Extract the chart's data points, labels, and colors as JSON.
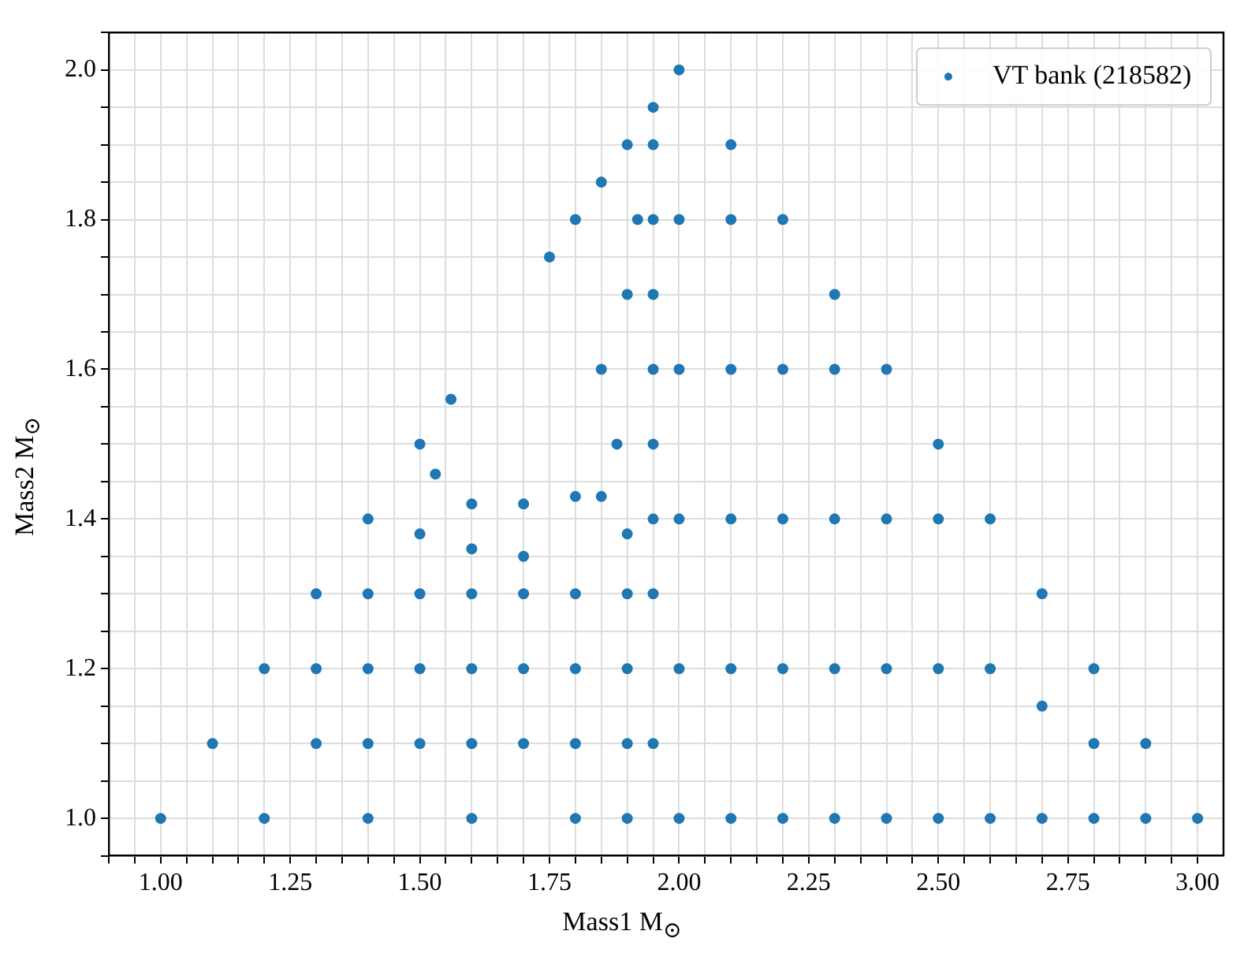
{
  "chart_data": {
    "type": "scatter",
    "xlabel": "Mass1 M$_{⊙}$",
    "ylabel": "Mass2 M$_{⊙}$",
    "xlim": [
      0.9,
      3.05
    ],
    "ylim": [
      0.95,
      2.05
    ],
    "xticks": [
      {
        "value": 0.9,
        "label": null
      },
      {
        "value": 0.95,
        "label": null
      },
      {
        "value": 1.0,
        "label": "1.00"
      },
      {
        "value": 1.05,
        "label": null
      },
      {
        "value": 1.1,
        "label": null
      },
      {
        "value": 1.15,
        "label": null
      },
      {
        "value": 1.2,
        "label": null
      },
      {
        "value": 1.25,
        "label": "1.25"
      },
      {
        "value": 1.3,
        "label": null
      },
      {
        "value": 1.35,
        "label": null
      },
      {
        "value": 1.4,
        "label": null
      },
      {
        "value": 1.45,
        "label": null
      },
      {
        "value": 1.5,
        "label": "1.50"
      },
      {
        "value": 1.55,
        "label": null
      },
      {
        "value": 1.6,
        "label": null
      },
      {
        "value": 1.65,
        "label": null
      },
      {
        "value": 1.7,
        "label": null
      },
      {
        "value": 1.75,
        "label": "1.75"
      },
      {
        "value": 1.8,
        "label": null
      },
      {
        "value": 1.85,
        "label": null
      },
      {
        "value": 1.9,
        "label": null
      },
      {
        "value": 1.95,
        "label": null
      },
      {
        "value": 2.0,
        "label": "2.00"
      },
      {
        "value": 2.05,
        "label": null
      },
      {
        "value": 2.1,
        "label": null
      },
      {
        "value": 2.15,
        "label": null
      },
      {
        "value": 2.2,
        "label": null
      },
      {
        "value": 2.25,
        "label": "2.25"
      },
      {
        "value": 2.3,
        "label": null
      },
      {
        "value": 2.35,
        "label": null
      },
      {
        "value": 2.4,
        "label": null
      },
      {
        "value": 2.45,
        "label": null
      },
      {
        "value": 2.5,
        "label": "2.50"
      },
      {
        "value": 2.55,
        "label": null
      },
      {
        "value": 2.6,
        "label": null
      },
      {
        "value": 2.65,
        "label": null
      },
      {
        "value": 2.7,
        "label": null
      },
      {
        "value": 2.75,
        "label": "2.75"
      },
      {
        "value": 2.8,
        "label": null
      },
      {
        "value": 2.85,
        "label": null
      },
      {
        "value": 2.9,
        "label": null
      },
      {
        "value": 2.95,
        "label": null
      },
      {
        "value": 3.0,
        "label": "3.00"
      }
    ],
    "yticks": [
      {
        "value": 0.95,
        "label": null
      },
      {
        "value": 1.0,
        "label": "1.0"
      },
      {
        "value": 1.05,
        "label": null
      },
      {
        "value": 1.1,
        "label": null
      },
      {
        "value": 1.15,
        "label": null
      },
      {
        "value": 1.2,
        "label": "1.2"
      },
      {
        "value": 1.25,
        "label": null
      },
      {
        "value": 1.3,
        "label": null
      },
      {
        "value": 1.35,
        "label": null
      },
      {
        "value": 1.4,
        "label": "1.4"
      },
      {
        "value": 1.45,
        "label": null
      },
      {
        "value": 1.5,
        "label": null
      },
      {
        "value": 1.55,
        "label": null
      },
      {
        "value": 1.6,
        "label": "1.6"
      },
      {
        "value": 1.65,
        "label": null
      },
      {
        "value": 1.7,
        "label": null
      },
      {
        "value": 1.75,
        "label": null
      },
      {
        "value": 1.8,
        "label": "1.8"
      },
      {
        "value": 1.85,
        "label": null
      },
      {
        "value": 1.9,
        "label": null
      },
      {
        "value": 1.95,
        "label": null
      },
      {
        "value": 2.0,
        "label": "2.0"
      },
      {
        "value": 2.05,
        "label": null
      }
    ],
    "grid": true,
    "legend": "top right",
    "marker": "circle",
    "series": [
      {
        "name": "VT bank (218582)",
        "color": "#1f77b4",
        "x": [
          2.0,
          2.0,
          2.0,
          2.0,
          2.0,
          2.0,
          2.1,
          2.1,
          2.1,
          2.1,
          2.1,
          2.1,
          2.2,
          2.2,
          2.2,
          2.2,
          2.2,
          2.3,
          2.3,
          2.3,
          2.3,
          2.3,
          2.4,
          2.4,
          2.4,
          2.4,
          2.5,
          2.5,
          2.5,
          2.5,
          2.6,
          2.6,
          2.6,
          2.7,
          2.7,
          2.7,
          2.8,
          2.8,
          2.8,
          2.9,
          2.9,
          3.0,
          1.0,
          1.1,
          1.2,
          1.3,
          1.4,
          1.5,
          1.2,
          1.4,
          1.6,
          1.8,
          1.9,
          1.3,
          1.3,
          1.4,
          1.4,
          1.4,
          1.5,
          1.5,
          1.5,
          1.5,
          1.6,
          1.6,
          1.6,
          1.6,
          1.7,
          1.7,
          1.7,
          1.7,
          1.8,
          1.8,
          1.8,
          1.9,
          1.9,
          1.9,
          1.9,
          1.95,
          1.95,
          1.95,
          1.95,
          1.95,
          1.95,
          1.95,
          1.95,
          1.6,
          1.7,
          1.8,
          1.85,
          1.75,
          1.8,
          1.85,
          1.9,
          1.95,
          1.88,
          1.9,
          1.85,
          1.92,
          1.56,
          1.53
        ],
        "values": [
          1.0,
          1.2,
          1.4,
          1.6,
          1.8,
          2.0,
          1.0,
          1.2,
          1.4,
          1.6,
          1.8,
          1.9,
          1.0,
          1.2,
          1.4,
          1.6,
          1.8,
          1.0,
          1.2,
          1.4,
          1.6,
          1.7,
          1.0,
          1.2,
          1.4,
          1.6,
          1.0,
          1.2,
          1.4,
          1.5,
          1.0,
          1.2,
          1.4,
          1.0,
          1.15,
          1.3,
          1.0,
          1.1,
          1.2,
          1.0,
          1.1,
          1.0,
          1.0,
          1.1,
          1.2,
          1.3,
          1.4,
          1.5,
          1.0,
          1.0,
          1.0,
          1.0,
          1.0,
          1.1,
          1.2,
          1.1,
          1.2,
          1.3,
          1.1,
          1.2,
          1.3,
          1.38,
          1.1,
          1.2,
          1.3,
          1.36,
          1.1,
          1.2,
          1.3,
          1.35,
          1.1,
          1.2,
          1.3,
          1.1,
          1.2,
          1.3,
          1.38,
          1.1,
          1.3,
          1.4,
          1.5,
          1.6,
          1.7,
          1.8,
          1.9,
          1.42,
          1.42,
          1.43,
          1.43,
          1.75,
          1.8,
          1.85,
          1.9,
          1.95,
          1.5,
          1.7,
          1.6,
          1.8,
          1.56,
          1.46
        ]
      }
    ]
  }
}
